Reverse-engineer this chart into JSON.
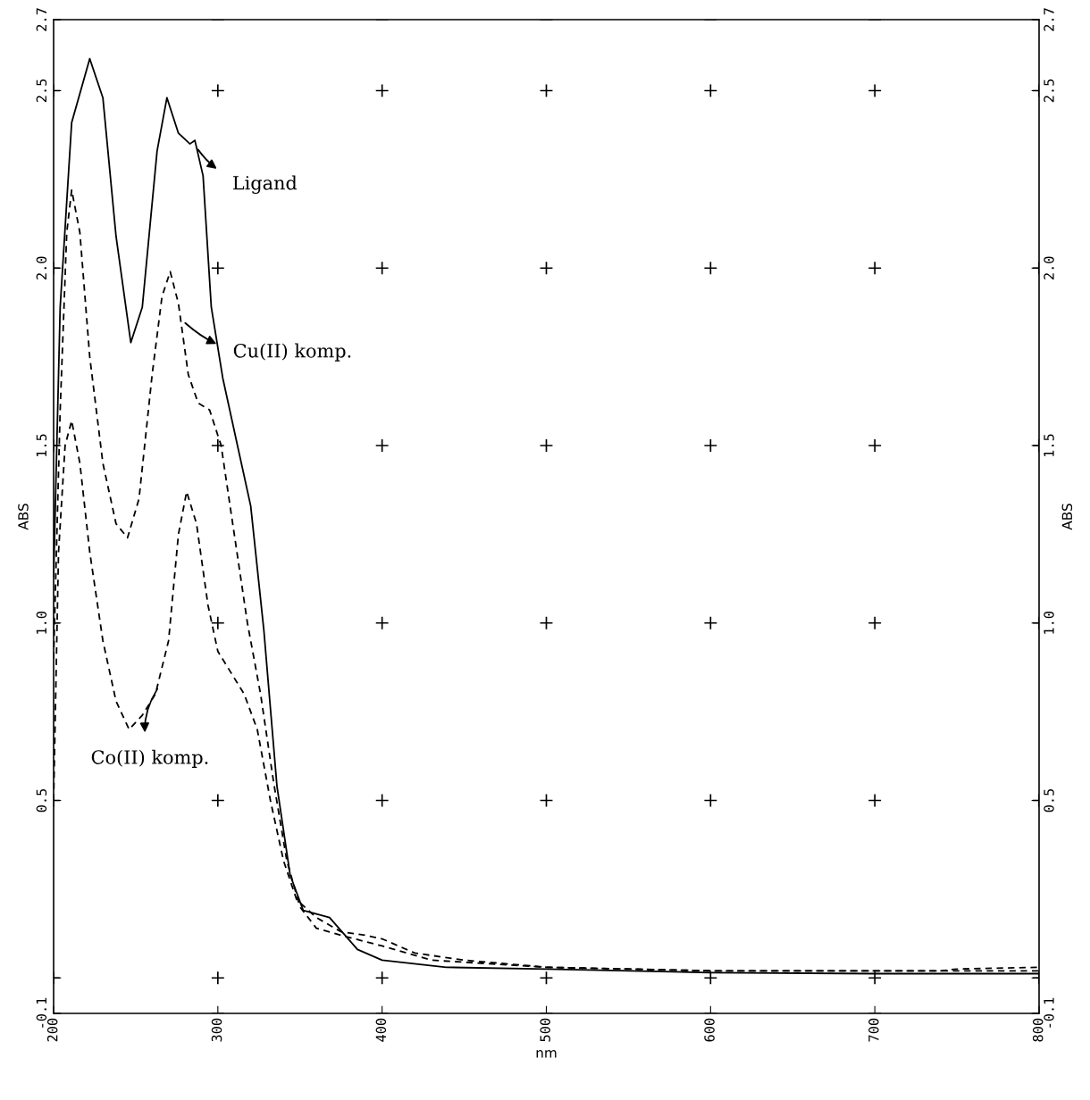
{
  "chart_data": {
    "type": "line",
    "xlabel": "nm",
    "ylabel": "ABS",
    "y2label": "ABS",
    "xlim": [
      200,
      800
    ],
    "xticks": [
      200,
      300,
      400,
      500,
      600,
      700,
      800
    ],
    "ylim": [
      -0.1,
      2.7
    ],
    "yticks": [
      -0.1,
      {
        "value": 0.0,
        "label": null
      },
      0.5,
      {
        "value": 1.0,
        "label": "1.0"
      },
      1.5,
      {
        "value": 2.0,
        "label": "2.0"
      },
      2.5,
      2.7
    ],
    "y2lim": [
      -0.1,
      2.7
    ],
    "y2ticks": [
      -0.1,
      {
        "value": 0.0,
        "label": null
      },
      0.5,
      {
        "value": 1.0,
        "label": "1.0"
      },
      1.5,
      {
        "value": 2.0,
        "label": "2.0"
      },
      2.5,
      2.7
    ],
    "grid": true,
    "series": [
      {
        "color": "#000000",
        "line_style": "solid",
        "x": [
          200,
          204,
          211,
          222,
          230,
          238,
          247,
          254,
          263,
          269,
          276,
          283,
          286,
          291,
          296,
          303,
          311,
          320,
          328,
          336,
          344,
          352,
          368,
          385,
          400,
          439,
          500,
          600,
          700,
          800
        ],
        "values": [
          1.13,
          1.89,
          2.41,
          2.59,
          2.48,
          2.09,
          1.79,
          1.89,
          2.33,
          2.48,
          2.38,
          2.35,
          2.36,
          2.26,
          1.89,
          1.69,
          1.52,
          1.33,
          0.98,
          0.54,
          0.29,
          0.19,
          0.17,
          0.08,
          0.05,
          0.03,
          0.025,
          0.015,
          0.012,
          0.012
        ]
      },
      {
        "color": "#000000",
        "line_style": "dashed",
        "x": [
          200,
          204,
          208,
          211,
          216,
          222,
          230,
          238,
          245,
          252,
          260,
          266,
          271,
          276,
          282,
          288,
          295,
          302,
          310,
          318,
          326,
          334,
          342,
          350,
          360,
          375,
          400,
          430,
          500,
          600,
          700,
          740,
          750,
          800
        ],
        "values": [
          0.9,
          1.6,
          2.1,
          2.22,
          2.1,
          1.75,
          1.45,
          1.28,
          1.24,
          1.35,
          1.7,
          1.92,
          1.99,
          1.9,
          1.7,
          1.62,
          1.6,
          1.5,
          1.25,
          1.0,
          0.8,
          0.55,
          0.33,
          0.2,
          0.14,
          0.12,
          0.09,
          0.05,
          0.03,
          0.02,
          0.02,
          0.02,
          0.025,
          0.03
        ]
      },
      {
        "color": "#000000",
        "line_style": "dashed",
        "x": [
          200,
          203,
          207,
          211,
          216,
          222,
          230,
          238,
          246,
          254,
          262,
          270,
          276,
          281,
          287,
          294,
          300,
          308,
          316,
          324,
          332,
          340,
          348,
          360,
          375,
          390,
          400,
          420,
          450,
          500,
          600,
          700,
          750,
          800
        ],
        "values": [
          0.5,
          1.2,
          1.5,
          1.57,
          1.45,
          1.2,
          0.95,
          0.78,
          0.7,
          0.74,
          0.8,
          0.95,
          1.25,
          1.37,
          1.28,
          1.05,
          0.92,
          0.86,
          0.8,
          0.7,
          0.5,
          0.33,
          0.22,
          0.17,
          0.13,
          0.12,
          0.11,
          0.07,
          0.05,
          0.03,
          0.02,
          0.02,
          0.02,
          0.02
        ]
      }
    ],
    "annotations": [
      {
        "text": "Ligand",
        "x": 287,
        "y": 2.34
      },
      {
        "text": "Cu(II) komp.",
        "x": 279,
        "y": 1.85
      },
      {
        "text": "Co(II) komp.",
        "x": 264,
        "y": 0.82
      }
    ]
  }
}
